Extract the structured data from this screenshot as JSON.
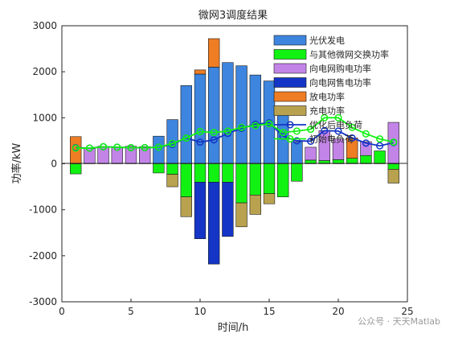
{
  "watermark": "公众号 · 天天Matlab",
  "chart_data": {
    "type": "bar",
    "title": "微网3调度结果",
    "xlabel": "时间/h",
    "ylabel": "功率/kW",
    "xlim": [
      0,
      25
    ],
    "ylim": [
      -3000,
      3000
    ],
    "xticks": [
      0,
      5,
      10,
      15,
      20,
      25
    ],
    "yticks": [
      -3000,
      -2000,
      -1000,
      0,
      1000,
      2000,
      3000
    ],
    "legend_position": "top-right",
    "x": [
      1,
      2,
      3,
      4,
      5,
      6,
      7,
      8,
      9,
      10,
      11,
      12,
      13,
      14,
      15,
      16,
      17,
      18,
      19,
      20,
      21,
      22,
      23,
      24
    ],
    "series": [
      {
        "name": "光伏发电",
        "kind": "bar",
        "color": "#3d85de",
        "values": [
          0,
          0,
          0,
          0,
          0,
          0,
          600,
          960,
          1700,
          1950,
          2100,
          2200,
          2130,
          1930,
          1800,
          1200,
          480,
          0,
          0,
          0,
          0,
          0,
          0,
          0
        ]
      },
      {
        "name": "与其他微网交换功率",
        "kind": "bar",
        "color": "#12f212",
        "values": [
          -220,
          0,
          0,
          0,
          0,
          0,
          -200,
          -230,
          -720,
          -400,
          -400,
          -400,
          -850,
          -680,
          -650,
          -720,
          -380,
          80,
          70,
          90,
          120,
          180,
          280,
          -120
        ]
      },
      {
        "name": "向电网购电功率",
        "kind": "bar",
        "color": "#c384e8",
        "values": [
          0,
          330,
          380,
          360,
          380,
          370,
          0,
          0,
          0,
          0,
          0,
          0,
          0,
          0,
          0,
          0,
          0,
          280,
          650,
          450,
          0,
          300,
          0,
          900
        ]
      },
      {
        "name": "向电网售电功率",
        "kind": "bar",
        "color": "#1535c6",
        "values": [
          0,
          0,
          0,
          0,
          0,
          0,
          0,
          0,
          0,
          -1230,
          -1780,
          -1180,
          0,
          0,
          0,
          0,
          0,
          0,
          0,
          0,
          0,
          0,
          0,
          0
        ]
      },
      {
        "name": "放电功率",
        "kind": "bar",
        "color": "#ee7d24",
        "values": [
          590,
          0,
          0,
          0,
          0,
          0,
          0,
          0,
          0,
          90,
          620,
          0,
          0,
          0,
          0,
          0,
          0,
          0,
          0,
          0,
          440,
          0,
          0,
          0
        ]
      },
      {
        "name": "充电功率",
        "kind": "bar",
        "color": "#b9a24f",
        "values": [
          0,
          0,
          0,
          0,
          0,
          0,
          0,
          -270,
          -430,
          0,
          0,
          0,
          -520,
          -420,
          -220,
          0,
          0,
          0,
          0,
          0,
          0,
          0,
          0,
          -300
        ]
      },
      {
        "name": "优化后电负荷",
        "kind": "line",
        "color": "#1535c6",
        "values": [
          350,
          340,
          370,
          360,
          350,
          350,
          360,
          420,
          560,
          470,
          520,
          660,
          770,
          860,
          890,
          600,
          500,
          490,
          720,
          710,
          560,
          450,
          390,
          460
        ]
      },
      {
        "name": "初始电负荷",
        "kind": "line",
        "color": "#12f212",
        "values": [
          340,
          340,
          370,
          360,
          350,
          350,
          360,
          440,
          560,
          700,
          680,
          710,
          790,
          830,
          870,
          680,
          710,
          750,
          1000,
          1000,
          790,
          650,
          540,
          470
        ]
      }
    ]
  }
}
